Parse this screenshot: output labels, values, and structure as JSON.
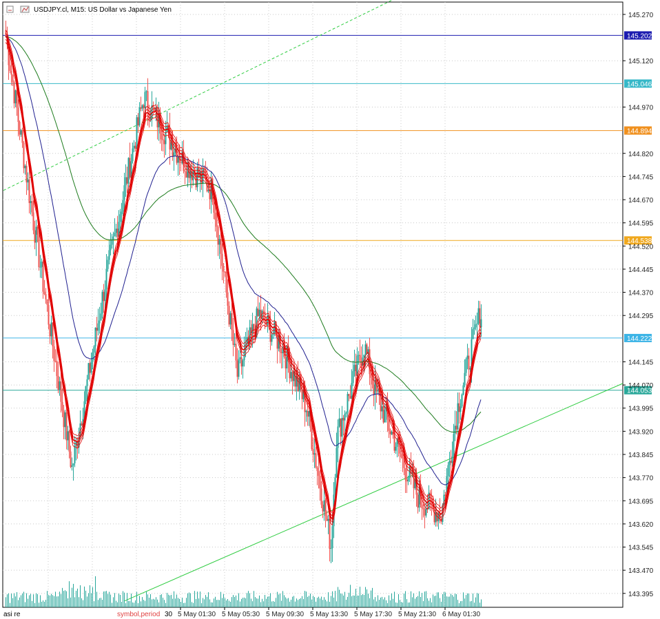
{
  "header": {
    "symbol_title": "USDJPY.cl, M15:  US Dollar vs Japanese Yen"
  },
  "footer": {
    "left_label": "asi re",
    "indicator_label": "symbol,period",
    "truncated_time": "30"
  },
  "colors": {
    "bull": "#26a69a",
    "bear": "#ef5350",
    "ma_blue": "#1f1f8f",
    "ma_green": "#1b7a1b",
    "ribbon": "#e00000",
    "trend_green": "#2ecc40",
    "grid": "#c8c8c8"
  },
  "chart_data": {
    "type": "candlestick",
    "symbol": "USDJPY.cl",
    "timeframe": "M15",
    "y_ticks": [
      "145.270",
      "145.120",
      "144.970",
      "144.820",
      "144.745",
      "144.670",
      "144.595",
      "144.520",
      "144.445",
      "144.370",
      "144.295",
      "144.145",
      "144.070",
      "143.995",
      "143.920",
      "143.845",
      "143.770",
      "143.695",
      "143.620",
      "143.545",
      "143.470",
      "143.395"
    ],
    "ylim": [
      143.35,
      145.31
    ],
    "x_ticks": [
      "5 May 01:30",
      "5 May 05:30",
      "5 May 09:30",
      "5 May 13:30",
      "5 May 17:30",
      "5 May 21:30",
      "6 May 01:30"
    ],
    "levels": [
      {
        "value": 145.202,
        "label": "145.202",
        "color": "#1c1cb0"
      },
      {
        "value": 145.046,
        "label": "145.046",
        "color": "#36b8c8"
      },
      {
        "value": 144.894,
        "label": "144.894",
        "color": "#f0901e"
      },
      {
        "value": 144.538,
        "label": "144.538",
        "color": "#f0a81e"
      },
      {
        "value": 144.222,
        "label": "144.222",
        "color": "#3cb4e6"
      },
      {
        "value": 144.053,
        "label": "144.053",
        "color": "#2aa89a"
      }
    ],
    "path_keys": [
      0,
      20,
      48,
      72,
      100,
      128,
      150,
      168,
      176,
      184,
      200,
      218,
      226,
      236,
      240,
      260,
      268,
      290,
      300,
      316,
      328,
      344
    ],
    "close_path": [
      145.2,
      144.6,
      143.8,
      144.4,
      145.0,
      144.8,
      144.7,
      144.1,
      144.2,
      144.3,
      144.2,
      144.0,
      143.8,
      143.55,
      143.9,
      144.2,
      144.05,
      143.8,
      143.7,
      143.65,
      144.0,
      144.3
    ],
    "bull_color": "#26a69a",
    "bear_color": "#ef5350"
  }
}
